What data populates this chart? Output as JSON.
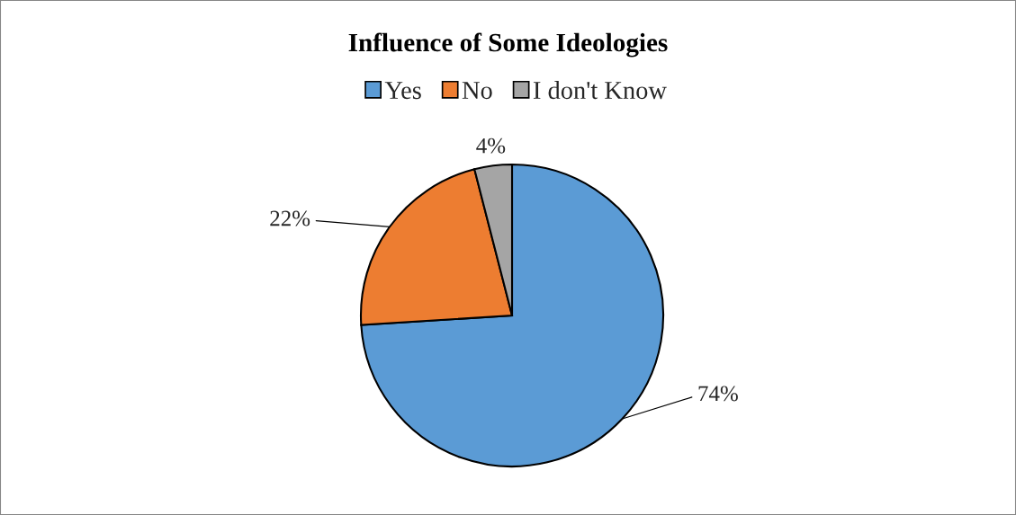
{
  "chart_data": {
    "type": "pie",
    "title": "Influence of Some Ideologies",
    "categories": [
      "Yes",
      "No",
      "I don't Know"
    ],
    "values": [
      74,
      22,
      4
    ],
    "colors": [
      "#5b9bd5",
      "#ed7d31",
      "#a5a5a5"
    ],
    "value_labels": [
      "74%",
      "22%",
      "4%"
    ],
    "legend": "top"
  }
}
